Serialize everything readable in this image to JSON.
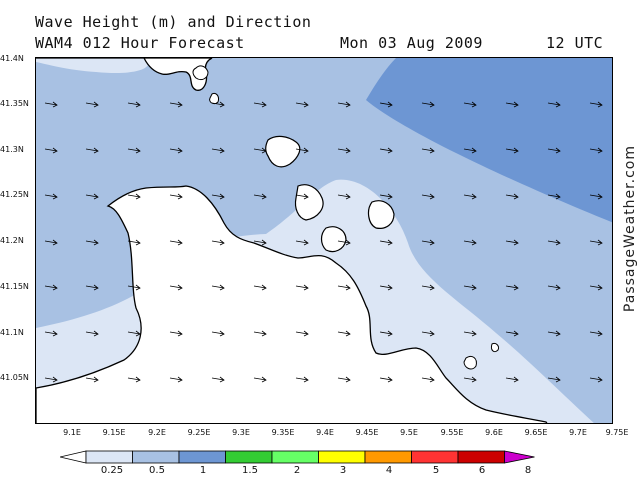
{
  "header": {
    "line1": "Wave Height (m) and Direction",
    "line2": "WAM4 012 Hour Forecast",
    "date": "Mon 03 Aug 2009",
    "time": "12 UTC"
  },
  "map": {
    "y_axis_labels": [
      "41.4N",
      "41.35N",
      "41.3N",
      "41.25N",
      "41.2N",
      "41.15N",
      "41.1N",
      "41.05N"
    ],
    "x_axis_labels": [
      "9.1E",
      "9.15E",
      "9.2E",
      "9.25E",
      "9.3E",
      "9.35E",
      "9.4E",
      "9.45E",
      "9.5E",
      "9.55E",
      "9.6E",
      "9.65E",
      "9.7E",
      "9.75E"
    ],
    "wave_direction": "east-southeast",
    "colors": {
      "land": "#ffffff",
      "band_0_25_0_5": "#dce6f5",
      "band_0_5_1": "#a8c1e3",
      "band_1_1_5": "#6d96d3",
      "coast": "#000000"
    }
  },
  "credit": "PassageWeather.com",
  "legend": {
    "labels": [
      "0.25",
      "0.5",
      "1",
      "1.5",
      "2",
      "3",
      "4",
      "5",
      "6",
      "8"
    ],
    "colors": [
      "#ffffff",
      "#dce6f5",
      "#a8c1e3",
      "#6d96d3",
      "#33cc33",
      "#66ff66",
      "#ffff00",
      "#ff9900",
      "#ff3333",
      "#cc0000",
      "#cc00cc"
    ]
  }
}
